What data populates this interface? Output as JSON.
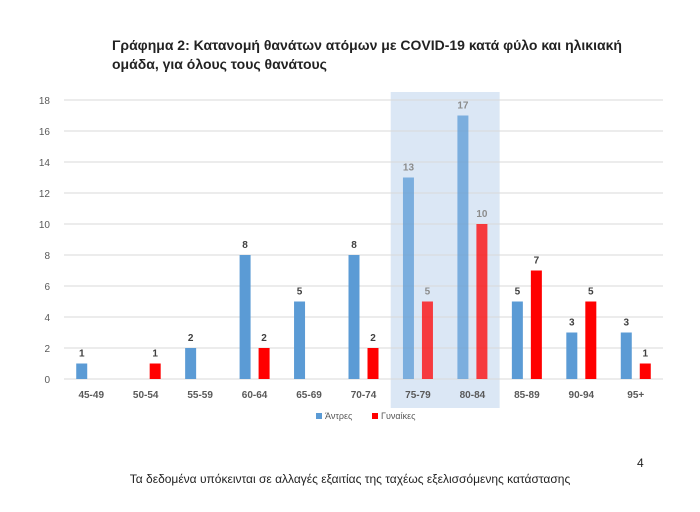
{
  "title": "Γράφημα 2: Κατανομή θανάτων ατόμων με COVID-19 κατά φύλο και ηλικιακή ομάδα, για όλους τους θανάτους",
  "footnote": "Τα δεδομένα υπόκεινται σε αλλαγές εξαιτίας της ταχέως εξελισσόμενης κατάστασης",
  "page_number": "4",
  "colors": {
    "men": "#5b9bd5",
    "women": "#ff0000",
    "highlight_band": "#dbe7f5",
    "axis_text": "#595959"
  },
  "chart_data": {
    "type": "bar",
    "categories": [
      "45-49",
      "50-54",
      "55-59",
      "60-64",
      "65-69",
      "70-74",
      "75-79",
      "80-84",
      "85-89",
      "90-94",
      "95+"
    ],
    "series": [
      {
        "name": "Άντρες",
        "values": [
          1,
          null,
          2,
          8,
          5,
          8,
          13,
          17,
          5,
          3,
          3
        ]
      },
      {
        "name": "Γυναίκες",
        "values": [
          null,
          1,
          null,
          2,
          null,
          2,
          5,
          10,
          7,
          5,
          1
        ]
      }
    ],
    "ylim": [
      0,
      18
    ],
    "yticks": [
      0,
      2,
      4,
      6,
      8,
      10,
      12,
      14,
      16,
      18
    ],
    "grid": true,
    "legend_position": "bottom",
    "highlighted_categories": [
      "75-79",
      "80-84"
    ],
    "xlabel": "",
    "ylabel": ""
  }
}
